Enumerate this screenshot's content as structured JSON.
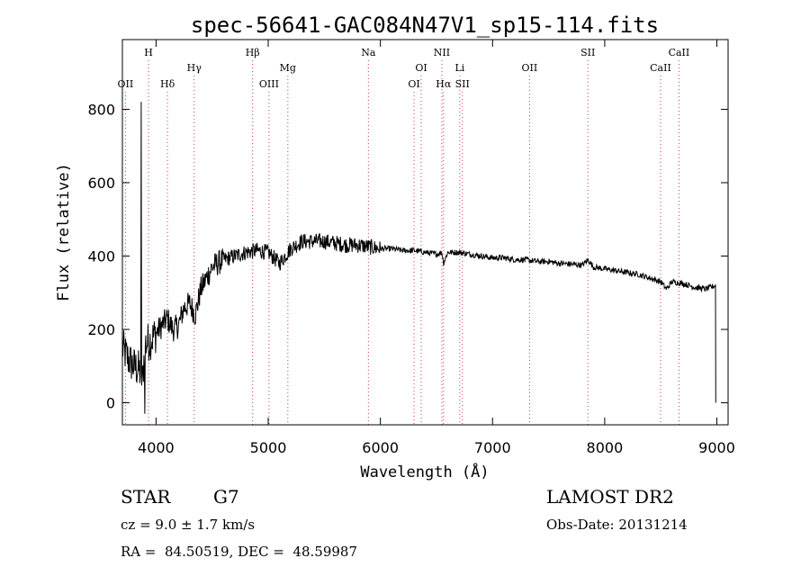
{
  "chart_data": {
    "type": "line",
    "title": "spec-56641-GAC084N47V1_sp15-114.fits",
    "xlabel": "Wavelength (Å)",
    "ylabel": "Flux (relative)",
    "xlim": [
      3700,
      9100
    ],
    "ylim": [
      -60,
      990
    ],
    "xticks": [
      4000,
      5000,
      6000,
      7000,
      8000,
      9000
    ],
    "yticks": [
      0,
      200,
      400,
      600,
      800
    ],
    "grid": false,
    "line_color": "#000000",
    "marker_color": "#d23c3c",
    "lines": [
      {
        "label": "OII",
        "wavelength": 3727,
        "row": 3
      },
      {
        "label": "H",
        "wavelength": 3933,
        "row": 1
      },
      {
        "label": "Hδ",
        "wavelength": 4102,
        "row": 3
      },
      {
        "label": "Hγ",
        "wavelength": 4340,
        "row": 2
      },
      {
        "label": "Hβ",
        "wavelength": 4861,
        "row": 1
      },
      {
        "label": "OIII",
        "wavelength": 5007,
        "row": 3
      },
      {
        "label": "Mg",
        "wavelength": 5175,
        "row": 2
      },
      {
        "label": "Na",
        "wavelength": 5893,
        "row": 1
      },
      {
        "label": "OI",
        "wavelength": 6300,
        "row": 3
      },
      {
        "label": "OI",
        "wavelength": 6364,
        "row": 2
      },
      {
        "label": "NII",
        "wavelength": 6548,
        "row": 1
      },
      {
        "label": "Hα",
        "wavelength": 6563,
        "row": 3
      },
      {
        "label": "Li",
        "wavelength": 6708,
        "row": 2
      },
      {
        "label": "SII",
        "wavelength": 6731,
        "row": 3
      },
      {
        "label": "OII",
        "wavelength": 7330,
        "row": 2
      },
      {
        "label": "SII",
        "wavelength": 7850,
        "row": 1
      },
      {
        "label": "CaII",
        "wavelength": 8498,
        "row": 2
      },
      {
        "label": "CaII",
        "wavelength": 8662,
        "row": 1
      }
    ],
    "spectrum": {
      "x": [
        3700,
        3750,
        3800,
        3850,
        3880,
        3900,
        3950,
        4000,
        4050,
        4100,
        4150,
        4200,
        4250,
        4300,
        4350,
        4400,
        4450,
        4500,
        4600,
        4700,
        4800,
        4900,
        5000,
        5100,
        5200,
        5300,
        5400,
        5500,
        5600,
        5700,
        5800,
        5900,
        6000,
        6100,
        6200,
        6300,
        6400,
        6500,
        6550,
        6563,
        6600,
        6700,
        6800,
        6900,
        7000,
        7100,
        7200,
        7300,
        7400,
        7500,
        7600,
        7700,
        7800,
        7850,
        7900,
        8000,
        8100,
        8200,
        8300,
        8400,
        8500,
        8550,
        8600,
        8700,
        8800,
        8900,
        8990
      ],
      "y": [
        150,
        120,
        100,
        90,
        60,
        160,
        170,
        190,
        210,
        230,
        200,
        210,
        260,
        270,
        240,
        310,
        340,
        370,
        390,
        400,
        410,
        415,
        410,
        380,
        420,
        440,
        440,
        440,
        435,
        430,
        430,
        425,
        420,
        420,
        415,
        415,
        410,
        405,
        410,
        380,
        410,
        410,
        405,
        400,
        395,
        395,
        390,
        390,
        385,
        385,
        380,
        378,
        375,
        390,
        370,
        365,
        360,
        355,
        350,
        340,
        330,
        310,
        330,
        325,
        315,
        310,
        320
      ]
    }
  },
  "footer": {
    "object_class": "STAR",
    "subclass": "G7",
    "redshift": "cz = 9.0 ± 1.7 km/s",
    "coordinates": "RA =  84.50519, DEC =  48.59987",
    "survey": "LAMOST DR2",
    "obs_date": "Obs-Date: 20131214"
  }
}
